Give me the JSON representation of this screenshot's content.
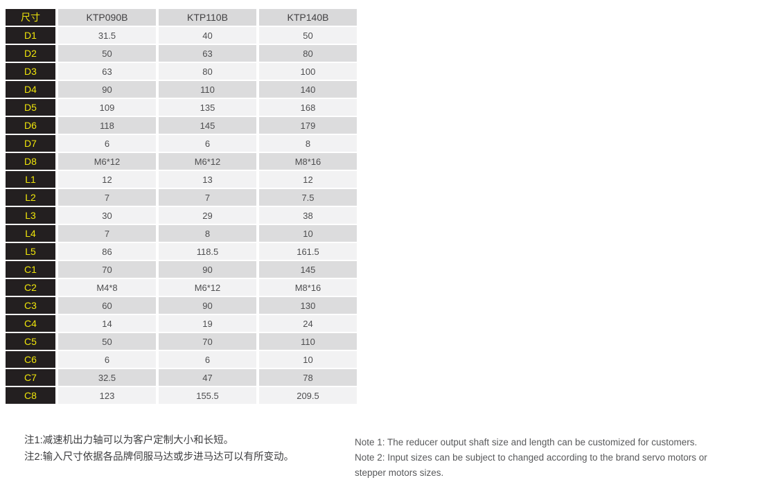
{
  "table": {
    "header": {
      "label": "尺寸",
      "columns": [
        "KTP090B",
        "KTP110B",
        "KTP140B"
      ]
    },
    "rows": [
      {
        "label": "D1",
        "values": [
          "31.5",
          "40",
          "50"
        ]
      },
      {
        "label": "D2",
        "values": [
          "50",
          "63",
          "80"
        ]
      },
      {
        "label": "D3",
        "values": [
          "63",
          "80",
          "100"
        ]
      },
      {
        "label": "D4",
        "values": [
          "90",
          "110",
          "140"
        ]
      },
      {
        "label": "D5",
        "values": [
          "109",
          "135",
          "168"
        ]
      },
      {
        "label": "D6",
        "values": [
          "118",
          "145",
          "179"
        ]
      },
      {
        "label": "D7",
        "values": [
          "6",
          "6",
          "8"
        ]
      },
      {
        "label": "D8",
        "values": [
          "M6*12",
          "M6*12",
          "M8*16"
        ]
      },
      {
        "label": "L1",
        "values": [
          "12",
          "13",
          "12"
        ]
      },
      {
        "label": "L2",
        "values": [
          "7",
          "7",
          "7.5"
        ]
      },
      {
        "label": "L3",
        "values": [
          "30",
          "29",
          "38"
        ]
      },
      {
        "label": "L4",
        "values": [
          "7",
          "8",
          "10"
        ]
      },
      {
        "label": "L5",
        "values": [
          "86",
          "118.5",
          "161.5"
        ]
      },
      {
        "label": "C1",
        "values": [
          "70",
          "90",
          "145"
        ]
      },
      {
        "label": "C2",
        "values": [
          "M4*8",
          "M6*12",
          "M8*16"
        ]
      },
      {
        "label": "C3",
        "values": [
          "60",
          "90",
          "130"
        ]
      },
      {
        "label": "C4",
        "values": [
          "14",
          "19",
          "24"
        ]
      },
      {
        "label": "C5",
        "values": [
          "50",
          "70",
          "110"
        ]
      },
      {
        "label": "C6",
        "values": [
          "6",
          "6",
          "10"
        ]
      },
      {
        "label": "C7",
        "values": [
          "32.5",
          "47",
          "78"
        ]
      },
      {
        "label": "C8",
        "values": [
          "123",
          "155.5",
          "209.5"
        ]
      }
    ]
  },
  "notes_cn": {
    "note1": "注1:减速机出力轴可以为客户定制大小和长短。",
    "note2": "注2:输入尺寸依据各品牌伺服马达或步进马达可以有所变动。"
  },
  "notes_en": {
    "note1": "Note 1: The reducer output shaft size and length can be customized for customers.",
    "note2": "Note 2: Input sizes can be subject to changed according to the brand servo motors or stepper motors sizes."
  },
  "colors": {
    "label_bg": "#231f20",
    "label_text": "#f0e60a",
    "header_bg": "#d9d9da",
    "row_light": "#f2f2f3",
    "row_dark": "#dcdcdd",
    "cell_text": "#4d4d4f",
    "note_text": "#58595b"
  }
}
